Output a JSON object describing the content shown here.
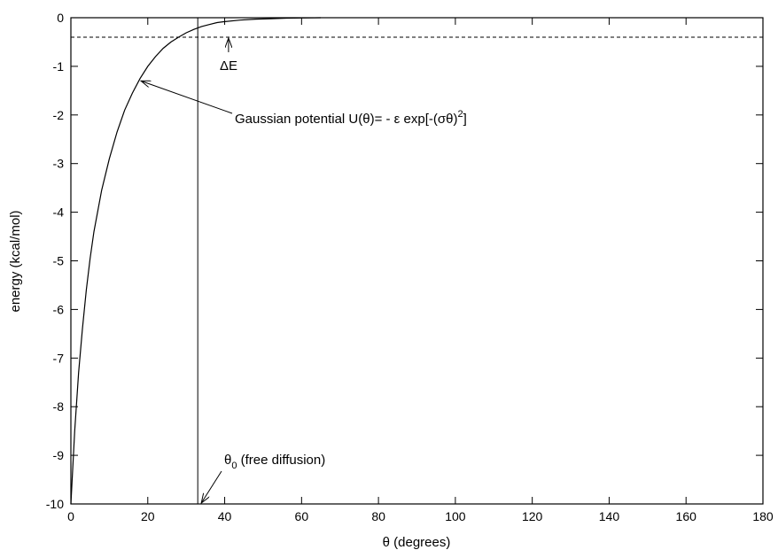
{
  "chart_data": {
    "type": "line",
    "title": "",
    "xlabel": "θ (degrees)",
    "ylabel": "energy (kcal/mol)",
    "xlim": [
      0,
      180
    ],
    "ylim": [
      -10,
      0
    ],
    "xticks": [
      0,
      20,
      40,
      60,
      80,
      100,
      120,
      140,
      160,
      180
    ],
    "yticks": [
      -10,
      -9,
      -8,
      -7,
      -6,
      -5,
      -4,
      -3,
      -2,
      -1,
      0
    ],
    "grid": false,
    "legend": "none",
    "series": [
      {
        "x": [
          0,
          1,
          2,
          3,
          4,
          5,
          6,
          8,
          10,
          12,
          14,
          16,
          18,
          20,
          22,
          24,
          26,
          28,
          30,
          32,
          34,
          36,
          38,
          40,
          44,
          48,
          52,
          56,
          60,
          65
        ],
        "y": [
          -10,
          -8.5,
          -7.3,
          -6.4,
          -5.6,
          -4.95,
          -4.4,
          -3.55,
          -2.9,
          -2.35,
          -1.9,
          -1.55,
          -1.25,
          -1.0,
          -0.8,
          -0.63,
          -0.5,
          -0.4,
          -0.31,
          -0.24,
          -0.18,
          -0.14,
          -0.1,
          -0.08,
          -0.05,
          -0.03,
          -0.02,
          -0.01,
          -0.005,
          0
        ]
      }
    ],
    "reference_lines": {
      "hline_y": -0.4,
      "vline_x": 33
    },
    "annotations": {
      "delta_e": {
        "symbol": "ΔE",
        "at_x": 41,
        "at_y": -0.4
      },
      "potential": {
        "text_main": "Gaussian potential U(θ)= - ε exp[-(σθ)",
        "superscript": "2",
        "text_end": "]",
        "at_x": 18,
        "at_y": -1.3
      },
      "theta0": {
        "symbol": "θ",
        "subscript": "0",
        "text": " (free diffusion)",
        "at_x": 33,
        "at_y": -10
      }
    }
  }
}
